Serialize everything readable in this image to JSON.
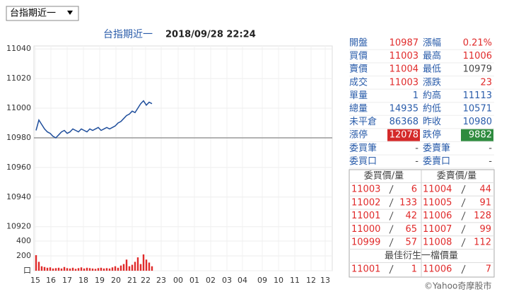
{
  "selector": "台指期近一",
  "chart": {
    "title": "台指期近一",
    "time": "2018/09/28 22:24",
    "ylim": [
      10917,
      11042
    ],
    "yticks": [
      10920,
      10940,
      10960,
      10980,
      11000,
      11020,
      11040
    ],
    "reference": 10980,
    "line_color": "#1f4e9c",
    "price": [
      10985,
      10992,
      10989,
      10986,
      10984,
      10983,
      10981,
      10980,
      10982,
      10984,
      10985,
      10983,
      10984,
      10986,
      10985,
      10984,
      10986,
      10985,
      10984,
      10986,
      10985,
      10986,
      10987,
      10985,
      10986,
      10987,
      10986,
      10987,
      10988,
      10990,
      10991,
      10993,
      10995,
      10996,
      10998,
      10997,
      11000,
      11003,
      11005,
      11002,
      11004,
      11003
    ],
    "vlim": [
      0,
      400
    ],
    "vticks": [
      {
        "value": 0,
        "label": "口"
      },
      200,
      400
    ],
    "volume_color": "#e02a2a",
    "volume": [
      210,
      120,
      60,
      50,
      40,
      45,
      30,
      35,
      40,
      30,
      50,
      35,
      30,
      40,
      25,
      35,
      45,
      30,
      40,
      35,
      30,
      25,
      35,
      40,
      30,
      35,
      30,
      45,
      60,
      40,
      70,
      90,
      150,
      60,
      80,
      120,
      180,
      90,
      220,
      150,
      110,
      60
    ],
    "xticks": [
      "15",
      "16",
      "17",
      "18",
      "19",
      "20",
      "21",
      "22",
      "23",
      "00",
      "01",
      "02",
      "03",
      "04",
      "09",
      "10",
      "11",
      "12",
      "13"
    ]
  },
  "quote": [
    [
      "開盤",
      "10987",
      "漲幅",
      "0.21%"
    ],
    [
      "買價",
      "11003",
      "最高",
      "11006"
    ],
    [
      "賣價",
      "11004",
      "最低",
      "10979"
    ],
    [
      "成交",
      "11003",
      "漲跌",
      "23"
    ],
    [
      "單量",
      "1",
      "約高",
      "11113"
    ],
    [
      "總量",
      "14935",
      "約低",
      "10571"
    ],
    [
      "未平倉",
      "86368",
      "昨收",
      "10980"
    ],
    [
      "漲停",
      "12078",
      "跌停",
      "9882"
    ],
    [
      "委買筆",
      "-",
      "委賣筆",
      "-"
    ],
    [
      "委買口",
      "-",
      "委賣口",
      "-"
    ]
  ],
  "book": {
    "headers": [
      "委買價/量",
      "委賣價/量"
    ],
    "rows": [
      [
        11003,
        6,
        11004,
        44
      ],
      [
        11002,
        133,
        11005,
        91
      ],
      [
        11001,
        42,
        11006,
        128
      ],
      [
        11000,
        65,
        11007,
        99
      ],
      [
        10999,
        57,
        11008,
        112
      ]
    ],
    "best_title": "最佳衍生一檔價量",
    "best": [
      11001,
      1,
      11006,
      7
    ]
  },
  "footer": "©Yahoo奇摩股市"
}
